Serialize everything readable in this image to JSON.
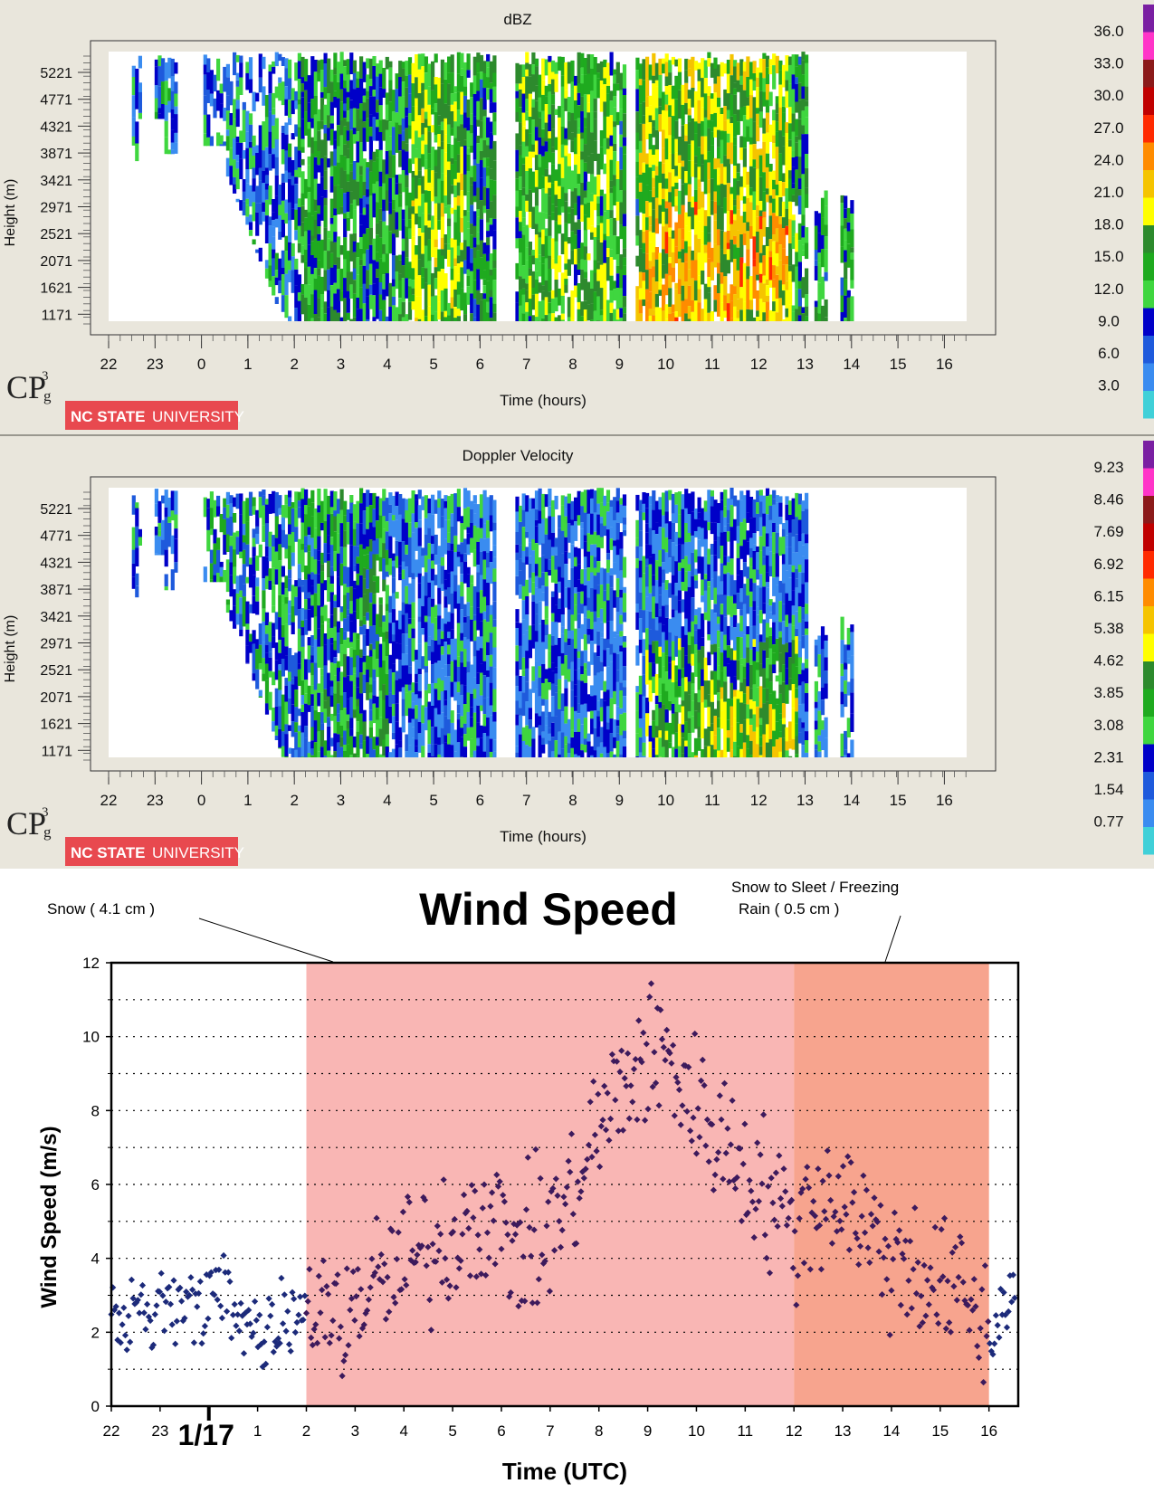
{
  "radar_panels": [
    {
      "id": "dbz",
      "title": "dBZ",
      "ylabel": "Height (m)",
      "xlabel": "Time (hours)",
      "y_ticks": [
        "5221",
        "4771",
        "4321",
        "3871",
        "3421",
        "2971",
        "2521",
        "2071",
        "1621",
        "1171"
      ],
      "x_ticks": [
        "22",
        "23",
        "0",
        "1",
        "2",
        "3",
        "4",
        "5",
        "6",
        "7",
        "8",
        "9",
        "10",
        "11",
        "12",
        "13",
        "14",
        "15",
        "16"
      ],
      "scale_labels": [
        "36.0",
        "33.0",
        "30.0",
        "27.0",
        "24.0",
        "21.0",
        "18.0",
        "15.0",
        "12.0",
        "9.0",
        "6.0",
        "3.0"
      ],
      "logo_text": "CP",
      "logo_sup": "3",
      "logo_sub": "g",
      "badge_text": "NC STATE",
      "badge_text2": "UNIVERSITY"
    },
    {
      "id": "vel",
      "title": "Doppler Velocity",
      "ylabel": "Height (m)",
      "xlabel": "Time (hours)",
      "y_ticks": [
        "5221",
        "4771",
        "4321",
        "3871",
        "3421",
        "2971",
        "2521",
        "2071",
        "1621",
        "1171"
      ],
      "x_ticks": [
        "22",
        "23",
        "0",
        "1",
        "2",
        "3",
        "4",
        "5",
        "6",
        "7",
        "8",
        "9",
        "10",
        "11",
        "12",
        "13",
        "14",
        "15",
        "16"
      ],
      "scale_labels": [
        "9.23",
        "8.46",
        "7.69",
        "6.92",
        "6.15",
        "5.38",
        "4.62",
        "3.85",
        "3.08",
        "2.31",
        "1.54",
        "0.77"
      ],
      "logo_text": "CP",
      "logo_sup": "3",
      "logo_sub": "g",
      "badge_text": "NC STATE",
      "badge_text2": "UNIVERSITY"
    }
  ],
  "colorscale": [
    "#7a1fa2",
    "#ff35c8",
    "#8b1a1a",
    "#c00000",
    "#ff2a00",
    "#ff8c00",
    "#f5c400",
    "#ffff00",
    "#2d8a2d",
    "#1faa1f",
    "#3fd63f",
    "#0000c8",
    "#1e5adc",
    "#3a8cf0",
    "#40d0d8"
  ],
  "annotations": {
    "left": "Snow ( 4.1 cm )",
    "right_line1": "Snow to Sleet / Freezing",
    "right_line2": "Rain ( 0.5 cm )"
  },
  "chart_data": {
    "type": "scatter",
    "title": "Wind Speed",
    "xlabel": "Time (UTC)",
    "ylabel": "Wind Speed (m/s)",
    "x_ticks": [
      "22",
      "23",
      "1",
      "2",
      "3",
      "4",
      "5",
      "6",
      "7",
      "8",
      "9",
      "10",
      "11",
      "12",
      "13",
      "14",
      "15",
      "16"
    ],
    "date_label": "1/17",
    "ylim": [
      0,
      12
    ],
    "y_ticks": [
      "0",
      "2",
      "4",
      "6",
      "8",
      "10",
      "12"
    ],
    "grid": "dotted horizontal every 1 m/s",
    "shaded_regions": [
      {
        "label": "Snow ( 4.1 cm )",
        "x_start": 2,
        "x_end": 12,
        "color": "#f9b6b4"
      },
      {
        "label": "Snow to Sleet / Freezing Rain ( 0.5 cm )",
        "x_start": 12,
        "x_end": 16,
        "color": "#f7a48e"
      }
    ],
    "trend_points": [
      {
        "x": -2.0,
        "y": 2.3
      },
      {
        "x": -1.0,
        "y": 2.5
      },
      {
        "x": 0.0,
        "y": 3.0
      },
      {
        "x": 0.5,
        "y": 2.4
      },
      {
        "x": 1.0,
        "y": 2.1
      },
      {
        "x": 1.5,
        "y": 2.4
      },
      {
        "x": 2.0,
        "y": 2.6
      },
      {
        "x": 2.5,
        "y": 2.4
      },
      {
        "x": 3.0,
        "y": 2.8
      },
      {
        "x": 3.5,
        "y": 3.3
      },
      {
        "x": 4.0,
        "y": 3.8
      },
      {
        "x": 4.5,
        "y": 4.2
      },
      {
        "x": 5.0,
        "y": 4.5
      },
      {
        "x": 5.5,
        "y": 5.4
      },
      {
        "x": 6.0,
        "y": 4.7
      },
      {
        "x": 6.5,
        "y": 4.2
      },
      {
        "x": 7.0,
        "y": 4.8
      },
      {
        "x": 7.5,
        "y": 5.8
      },
      {
        "x": 8.0,
        "y": 7.6
      },
      {
        "x": 8.5,
        "y": 8.6
      },
      {
        "x": 9.0,
        "y": 9.6
      },
      {
        "x": 9.5,
        "y": 9.3
      },
      {
        "x": 10.0,
        "y": 8.0
      },
      {
        "x": 10.5,
        "y": 7.3
      },
      {
        "x": 11.0,
        "y": 6.5
      },
      {
        "x": 11.5,
        "y": 5.6
      },
      {
        "x": 12.0,
        "y": 4.8
      },
      {
        "x": 12.5,
        "y": 5.6
      },
      {
        "x": 13.0,
        "y": 5.8
      },
      {
        "x": 13.5,
        "y": 4.8
      },
      {
        "x": 14.0,
        "y": 4.0
      },
      {
        "x": 14.5,
        "y": 3.8
      },
      {
        "x": 15.0,
        "y": 3.2
      },
      {
        "x": 15.5,
        "y": 3.0
      },
      {
        "x": 16.0,
        "y": 1.8
      },
      {
        "x": 16.5,
        "y": 3.3
      }
    ],
    "point_color_clear": "#1c2a7a",
    "point_color_precip": "#3d1a5c",
    "series": [
      {
        "name": "",
        "description": "Wind speed observations approx. every 2 min"
      }
    ]
  }
}
